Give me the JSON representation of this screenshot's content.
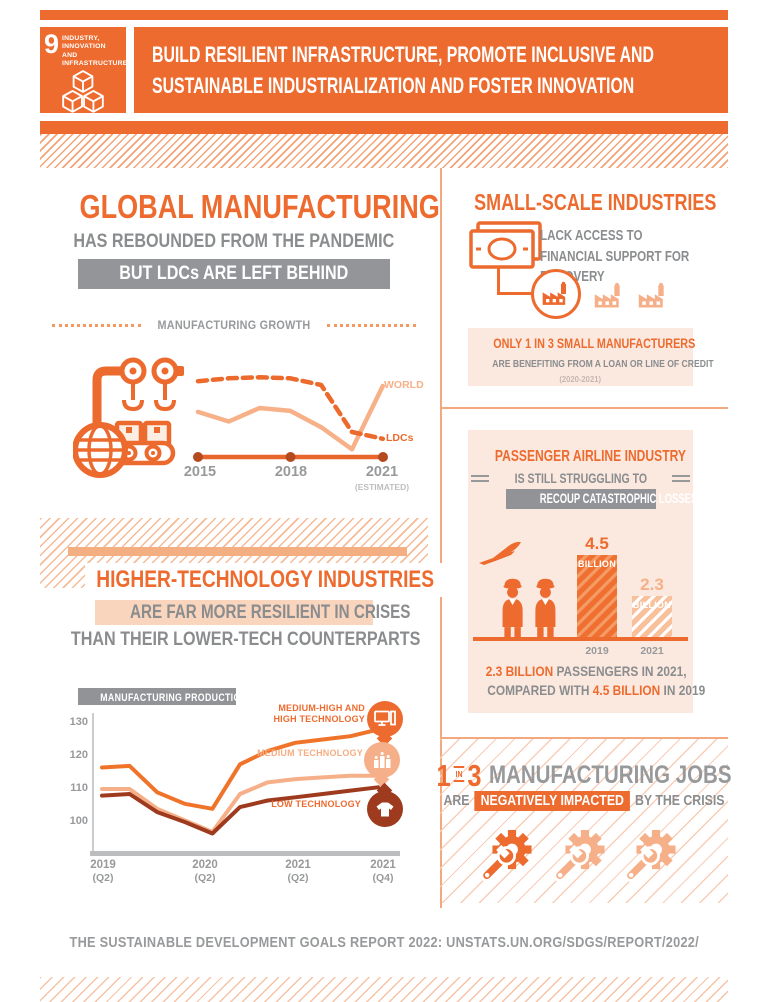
{
  "colors": {
    "primary_orange": "#ED6B2F",
    "light_orange": "#F6B089",
    "dark_rust": "#9E3A1D",
    "peach_panel": "#FBE9DF",
    "peach_highlight": "#FAD5BE",
    "gray_text": "#8A8C8E",
    "gray_box": "#939598"
  },
  "header": {
    "goal_number": "9",
    "goal_name_line1": "INDUSTRY, INNOVATION",
    "goal_name_line2": "AND INFRASTRUCTURE",
    "title_line1": "BUILD RESILIENT INFRASTRUCTURE, PROMOTE INCLUSIVE AND",
    "title_line2": "SUSTAINABLE INDUSTRIALIZATION AND FOSTER INNOVATION"
  },
  "global_manufacturing": {
    "headline": "GLOBAL MANUFACTURING",
    "subheadline": "HAS REBOUNDED FROM THE PANDEMIC",
    "badge": "BUT LDCs ARE LEFT BEHIND"
  },
  "higher_tech": {
    "headline": "HIGHER-TECHNOLOGY INDUSTRIES",
    "sub_highlight": "ARE FAR MORE RESILIENT IN CRISES",
    "sub2": "THAN THEIR LOWER-TECH COUNTERPARTS"
  },
  "small_scale": {
    "headline": "SMALL-SCALE INDUSTRIES",
    "subtext": "LACK ACCESS TO FINANCIAL SUPPORT FOR RECOVERY",
    "box_line1": "ONLY 1 IN 3 SMALL MANUFACTURERS",
    "box_line2": "ARE BENEFITING FROM A LOAN OR LINE OF CREDIT",
    "box_line3": "(2020-2021)"
  },
  "airline": {
    "headline": "PASSENGER AIRLINE INDUSTRY",
    "subheadline": "IS STILL STRUGGLING TO",
    "badge": "RECOUP CATASTROPHIC LOSSES",
    "caption1_highlight": "2.3 BILLION",
    "caption1_rest": " PASSENGERS IN 2021,",
    "caption2_start": "COMPARED WITH ",
    "caption2_highlight": "4.5 BILLION",
    "caption2_rest": " IN 2019"
  },
  "jobs": {
    "num1": "1",
    "in_word": "IN",
    "num2": "3",
    "headline_rest": "MANUFACTURING JOBS",
    "line2_start": "ARE",
    "line2_highlight": "NEGATIVELY IMPACTED",
    "line2_rest": "BY THE CRISIS"
  },
  "footer": {
    "text": "THE SUSTAINABLE DEVELOPMENT GOALS REPORT 2022: UNSTATS.UN.ORG/SDGS/REPORT/2022/"
  },
  "chart_data": [
    {
      "id": "manufacturing-growth",
      "type": "line",
      "title": "MANUFACTURING GROWTH",
      "x": [
        2015,
        2016,
        2017,
        2018,
        2019,
        2020,
        2021
      ],
      "series": [
        {
          "name": "WORLD",
          "color": "#F7B189",
          "values": [
            4.7,
            3.7,
            5.1,
            4.8,
            3.1,
            0.8,
            7.4
          ]
        },
        {
          "name": "LDCs",
          "color": "#ED6A2D",
          "dashed": true,
          "values": [
            7.9,
            8.2,
            8.3,
            8.2,
            7.5,
            2.6,
            1.9
          ]
        }
      ],
      "xticks": [
        "2015",
        "2018",
        "2021"
      ],
      "estimated_note": "(ESTIMATED)",
      "ylim": [
        0,
        9.5
      ],
      "legend_position": "right"
    },
    {
      "id": "manufacturing-production-index",
      "type": "line",
      "title": "MANUFACTURING PRODUCTION INDEX",
      "x_labels": [
        {
          "year": "2019",
          "quarter": "(Q2)"
        },
        {
          "year": "2020",
          "quarter": "(Q2)"
        },
        {
          "year": "2021",
          "quarter": "(Q2)"
        },
        {
          "year": "2021",
          "quarter": "(Q4)"
        }
      ],
      "xtick_positions": [
        0,
        4,
        8,
        10
      ],
      "yticks": [
        130,
        120,
        110,
        100
      ],
      "ylim": [
        93,
        133
      ],
      "series": [
        {
          "name": "MEDIUM-HIGH AND HIGH TECHNOLOGY",
          "color": "#F0732A",
          "values": [
            116.5,
            117,
            109,
            105.5,
            104,
            117.5,
            121.5,
            124,
            125,
            126,
            128
          ]
        },
        {
          "name": "MEDIUM TECHNOLOGY",
          "color": "#F6B089",
          "values": [
            110,
            110,
            104,
            100.5,
            97,
            108.5,
            112,
            113,
            113.5,
            114,
            114
          ]
        },
        {
          "name": "LOW TECHNOLOGY",
          "color": "#9E3A1D",
          "values": [
            108,
            108.5,
            103,
            100,
            96.5,
            104.5,
            106.5,
            107.5,
            108.5,
            109.5,
            110.5
          ]
        }
      ],
      "legend_position": "right"
    },
    {
      "id": "airline-passengers",
      "type": "bar",
      "categories": [
        "2019",
        "2021"
      ],
      "values": [
        4.5,
        2.3
      ],
      "unit": "BILLION",
      "scale_max": 4.5
    }
  ]
}
